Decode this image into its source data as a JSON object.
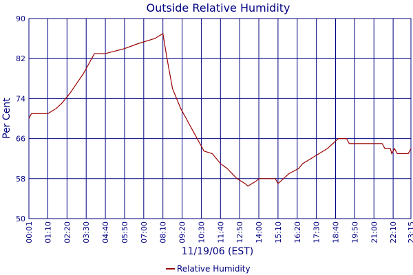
{
  "chart_data": {
    "type": "line",
    "title": "Outside Relative Humidity",
    "xlabel": "11/19/06 (EST)",
    "ylabel": "Per Cent",
    "x": [
      1,
      10,
      70,
      100,
      120,
      150,
      175,
      200,
      210,
      230,
      240,
      280,
      350,
      400,
      460,
      490,
      505,
      525,
      555,
      575,
      605,
      625,
      640,
      670,
      700,
      725,
      760,
      790,
      800,
      830,
      840,
      900,
      910,
      930,
      950,
      985,
      1000,
      1030,
      1060,
      1090,
      1110,
      1130,
      1160,
      1170,
      1290,
      1300,
      1320,
      1325,
      1335,
      1345,
      1385,
      1395
    ],
    "series": [
      {
        "name": "Relative Humidity",
        "color": "#990000",
        "values": [
          70,
          71,
          71,
          72,
          73,
          75,
          77,
          79,
          80,
          82,
          83,
          83,
          84,
          85,
          86,
          87,
          82,
          76,
          72,
          70,
          67,
          65,
          63.5,
          63,
          61,
          60,
          58,
          57,
          56.5,
          57.5,
          58,
          58,
          57,
          58,
          59,
          60,
          61,
          62,
          63,
          64,
          65,
          66,
          66,
          65,
          65,
          64,
          64,
          63,
          64,
          63,
          63,
          64
        ]
      }
    ],
    "xlim": [
      1,
      1395
    ],
    "xticks": [
      {
        "value": 1,
        "label": "00:01"
      },
      {
        "value": 70,
        "label": "01:10"
      },
      {
        "value": 140,
        "label": "02:20"
      },
      {
        "value": 210,
        "label": "03:30"
      },
      {
        "value": 280,
        "label": "04:40"
      },
      {
        "value": 350,
        "label": "05:50"
      },
      {
        "value": 420,
        "label": "07:00"
      },
      {
        "value": 490,
        "label": "08:10"
      },
      {
        "value": 560,
        "label": "09:20"
      },
      {
        "value": 630,
        "label": "10:30"
      },
      {
        "value": 700,
        "label": "11:40"
      },
      {
        "value": 770,
        "label": "12:50"
      },
      {
        "value": 840,
        "label": "14:00"
      },
      {
        "value": 910,
        "label": "15:10"
      },
      {
        "value": 980,
        "label": "16:20"
      },
      {
        "value": 1050,
        "label": "17:30"
      },
      {
        "value": 1120,
        "label": "18:40"
      },
      {
        "value": 1190,
        "label": "19:50"
      },
      {
        "value": 1260,
        "label": "21:00"
      },
      {
        "value": 1330,
        "label": "22:10"
      },
      {
        "value": 1395,
        "label": "23:15"
      }
    ],
    "ylim": [
      50,
      90
    ],
    "yticks": [
      50,
      58,
      66,
      74,
      82,
      90
    ],
    "grid": true,
    "legend": "bottom"
  }
}
